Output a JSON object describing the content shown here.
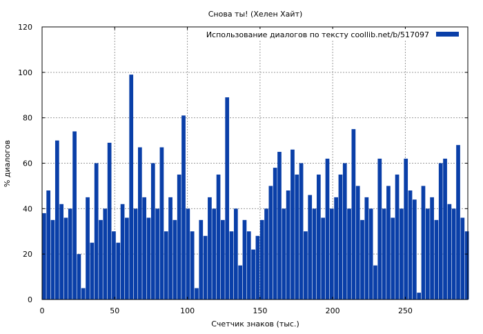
{
  "chart_data": {
    "type": "bar",
    "title": "Снова ты! (Хелен Хайт)",
    "xlabel": "Счетчик знаков (тыс.)",
    "ylabel": "% диалогов",
    "xlim": [
      0,
      293
    ],
    "ylim": [
      0,
      120
    ],
    "xticks": [
      0,
      50,
      100,
      150,
      200,
      250
    ],
    "yticks": [
      0,
      20,
      40,
      60,
      80,
      100,
      120
    ],
    "grid": true,
    "legend": {
      "position": "top-right"
    },
    "series": [
      {
        "name": "Использование диалогов по тексту  coollib.net/b/517097",
        "color": "#0a3fa8",
        "x": [
          0,
          3,
          6,
          9,
          12,
          15,
          18,
          21,
          24,
          27,
          30,
          33,
          36,
          39,
          42,
          45,
          48,
          51,
          54,
          57,
          60,
          63,
          66,
          69,
          72,
          75,
          78,
          81,
          84,
          87,
          90,
          93,
          96,
          99,
          102,
          105,
          108,
          111,
          114,
          117,
          120,
          123,
          126,
          129,
          132,
          135,
          138,
          141,
          144,
          147,
          150,
          153,
          156,
          159,
          162,
          165,
          168,
          171,
          174,
          177,
          180,
          183,
          186,
          189,
          192,
          195,
          198,
          201,
          204,
          207,
          210,
          213,
          216,
          219,
          222,
          225,
          228,
          231,
          234,
          237,
          240,
          243,
          246,
          249,
          252,
          255,
          258,
          261,
          264,
          267,
          270,
          273,
          276,
          279,
          282,
          285,
          288,
          291
        ],
        "values": [
          38,
          48,
          35,
          70,
          42,
          36,
          40,
          74,
          20,
          5,
          45,
          25,
          60,
          35,
          40,
          69,
          30,
          25,
          42,
          36,
          99,
          40,
          67,
          45,
          36,
          60,
          40,
          67,
          30,
          45,
          35,
          55,
          81,
          40,
          30,
          5,
          35,
          28,
          45,
          40,
          55,
          35,
          89,
          30,
          40,
          15,
          35,
          30,
          22,
          28,
          35,
          40,
          50,
          58,
          65,
          40,
          48,
          66,
          55,
          60,
          30,
          46,
          40,
          55,
          36,
          62,
          40,
          45,
          55,
          60,
          40,
          75,
          50,
          35,
          45,
          40,
          15,
          62,
          40,
          50,
          36,
          55,
          40,
          62,
          48,
          44,
          3,
          50,
          40,
          45,
          35,
          60,
          62,
          42,
          40,
          68,
          36,
          30
        ]
      }
    ]
  }
}
